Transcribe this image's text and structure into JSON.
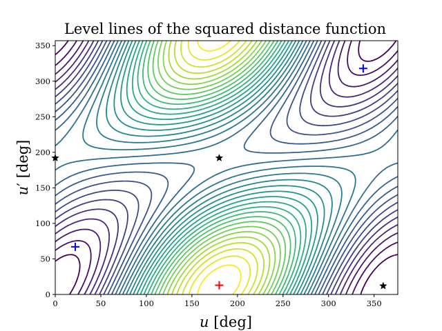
{
  "chart_data": {
    "type": "contour",
    "title": "Level lines of the squared distance function",
    "xlabel": "u [deg]",
    "ylabel": "u′ [deg]",
    "xlim": [
      0,
      376
    ],
    "ylim": [
      0,
      357
    ],
    "xticks": [
      0,
      50,
      100,
      150,
      200,
      250,
      300,
      350
    ],
    "yticks": [
      0,
      50,
      100,
      150,
      200,
      250,
      300,
      350
    ],
    "grid": false,
    "colormap": "viridis",
    "description": "Contour lines of a periodic squared-distance function with a saddle at (180,192); maxima near (180,13) and (180,357); minima near (22,67) and (338,318).",
    "markers": [
      {
        "label": "minimum",
        "symbol": "plus",
        "color": "#0000ff",
        "x": 22,
        "y": 67
      },
      {
        "label": "minimum",
        "symbol": "plus",
        "color": "#0000ff",
        "x": 338,
        "y": 318
      },
      {
        "label": "maximum",
        "symbol": "plus",
        "color": "#ff0000",
        "x": 180,
        "y": 13
      },
      {
        "label": "saddle",
        "symbol": "star",
        "color": "#000000",
        "x": 0,
        "y": 192
      },
      {
        "label": "saddle",
        "symbol": "star",
        "color": "#000000",
        "x": 180,
        "y": 192
      },
      {
        "label": "saddle",
        "symbol": "star",
        "color": "#000000",
        "x": 360,
        "y": 12
      }
    ]
  }
}
